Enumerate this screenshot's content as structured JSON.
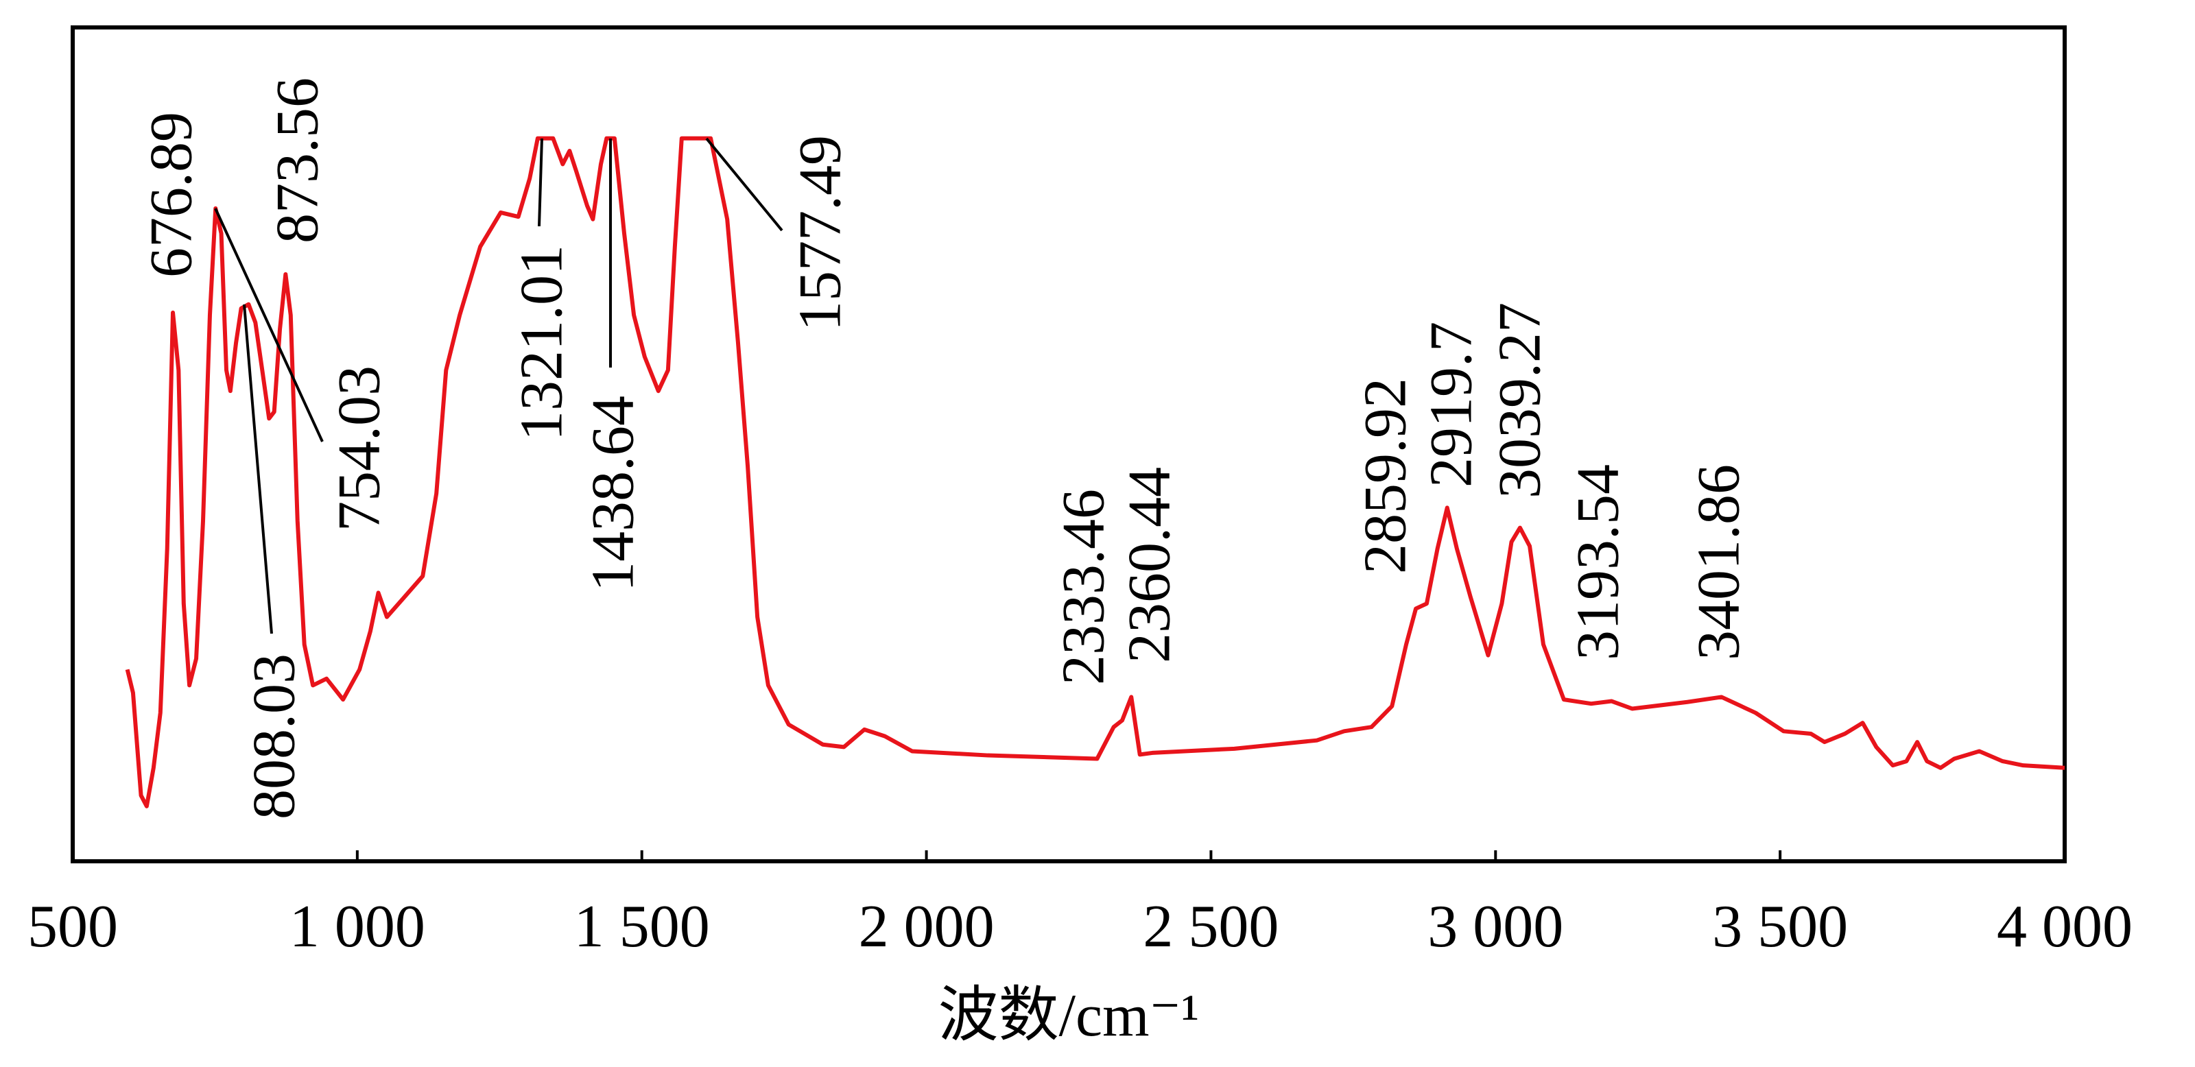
{
  "chart_data": {
    "type": "line",
    "xlabel": "波数/cm⁻¹",
    "xlim": [
      500,
      4000
    ],
    "ylim": [
      0,
      100
    ],
    "xticks": [
      500,
      {
        "value": 1000,
        "label": "1 000"
      },
      {
        "value": 1500,
        "label": "1 500"
      },
      {
        "value": 2000,
        "label": "2 000"
      },
      {
        "value": 2500,
        "label": "2 500"
      },
      {
        "value": 3000,
        "label": "3 000"
      },
      {
        "value": 3500,
        "label": "3 500"
      },
      {
        "value": 4000,
        "label": "4 000"
      }
    ],
    "series": [
      {
        "color": "#e8141b",
        "x": [
          596,
          606,
          620,
          630,
          642,
          654,
          666,
          676,
          686,
          695,
          705,
          717,
          729,
          741,
          751,
          761,
          770,
          777,
          787,
          796,
          809,
          821,
          833,
          845,
          854,
          864,
          874,
          883,
          895,
          907,
          922,
          946,
          975,
          1004,
          1023,
          1037,
          1052,
          1083,
          1115,
          1139,
          1156,
          1180,
          1216,
          1252,
          1283,
          1303,
          1317,
          1344,
          1361,
          1373,
          1385,
          1404,
          1414,
          1428,
          1438,
          1452,
          1469,
          1486,
          1505,
          1529,
          1546,
          1558,
          1570,
          1621,
          1650,
          1669,
          1686,
          1703,
          1722,
          1758,
          1818,
          1855,
          1891,
          1927,
          1975,
          2108,
          2300,
          2329,
          2344,
          2360,
          2375,
          2397,
          2541,
          2686,
          2734,
          2782,
          2818,
          2843,
          2860,
          2879,
          2898,
          2915,
          2932,
          2956,
          2987,
          3011,
          3028,
          3043,
          3060,
          3084,
          3120,
          3168,
          3204,
          3240,
          3337,
          3397,
          3457,
          3506,
          3554,
          3578,
          3614,
          3645,
          3669,
          3698,
          3722,
          3741,
          3758,
          3782,
          3806,
          3850,
          3891,
          3927,
          4000
        ],
        "values": [
          23.0,
          20.2,
          7.9,
          6.6,
          11.2,
          17.8,
          37.5,
          65.8,
          58.9,
          30.9,
          21.1,
          24.3,
          40.8,
          65.5,
          78.3,
          75.3,
          58.9,
          56.4,
          62.2,
          66.3,
          66.8,
          64.6,
          58.9,
          53.1,
          53.9,
          63.8,
          70.4,
          65.5,
          40.8,
          26.0,
          21.1,
          21.9,
          19.4,
          23.0,
          27.6,
          32.2,
          29.3,
          31.7,
          34.2,
          44.1,
          58.9,
          65.5,
          73.7,
          77.8,
          77.3,
          81.9,
          86.7,
          86.7,
          83.6,
          85.2,
          82.7,
          78.6,
          77.0,
          83.6,
          86.7,
          86.7,
          75.3,
          65.5,
          60.5,
          56.4,
          58.9,
          73.7,
          86.7,
          86.7,
          77.0,
          62.2,
          47.4,
          29.3,
          21.1,
          16.4,
          14.0,
          13.7,
          15.8,
          15.0,
          13.2,
          12.7,
          12.3,
          16.1,
          16.9,
          19.7,
          12.8,
          13.0,
          13.5,
          14.5,
          15.6,
          16.1,
          18.6,
          26.0,
          30.3,
          30.9,
          37.5,
          42.4,
          37.5,
          31.7,
          24.7,
          30.9,
          38.3,
          40.0,
          37.8,
          26.0,
          19.4,
          18.9,
          19.2,
          18.3,
          19.1,
          19.7,
          17.8,
          15.6,
          15.3,
          14.3,
          15.3,
          16.6,
          13.7,
          11.5,
          12.0,
          14.3,
          12.0,
          11.2,
          12.3,
          13.2,
          12.0,
          11.5,
          11.2
        ]
      }
    ],
    "annotations": [
      "676.89",
      "873.56",
      "754.03",
      "808.03",
      "1321.01",
      "1438.64",
      "1577.49",
      "2333.46",
      "2360.44",
      "2859.92",
      "2919.7",
      "3039.27",
      "3193.54",
      "3401.86"
    ]
  }
}
